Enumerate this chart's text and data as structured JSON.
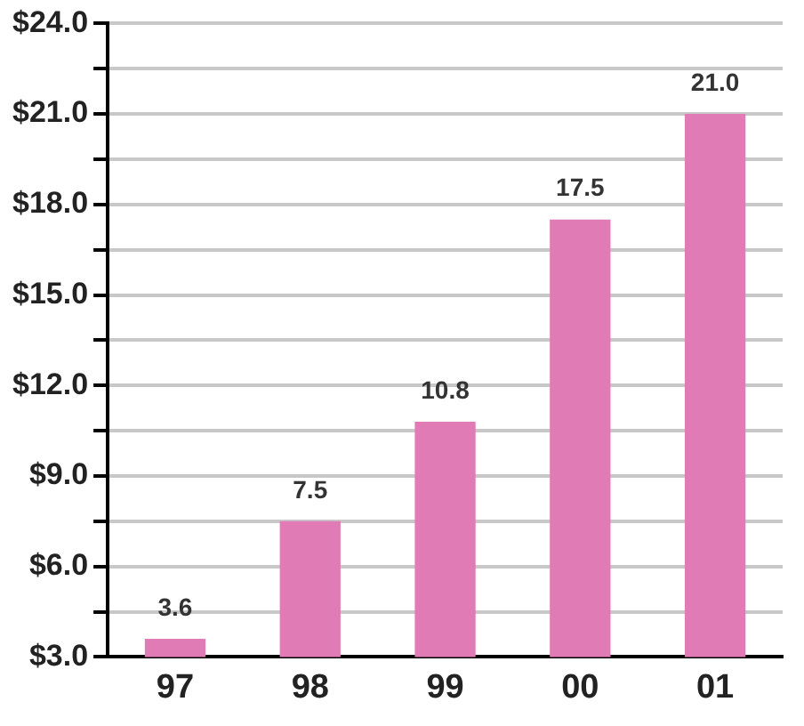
{
  "chart_data": {
    "type": "bar",
    "categories": [
      "97",
      "98",
      "99",
      "00",
      "01"
    ],
    "values": [
      3.6,
      7.5,
      10.8,
      17.5,
      21.0
    ],
    "value_labels": [
      "3.6",
      "7.5",
      "10.8",
      "17.5",
      "21.0"
    ],
    "color": "#e07bb5",
    "ylim": [
      3,
      24
    ],
    "yticks": [
      {
        "value": 3,
        "label": "$3.0"
      },
      {
        "value": 4.5,
        "label": null
      },
      {
        "value": 6,
        "label": "$6.0"
      },
      {
        "value": 7.5,
        "label": null
      },
      {
        "value": 9,
        "label": "$9.0"
      },
      {
        "value": 10.5,
        "label": null
      },
      {
        "value": 12,
        "label": "$12.0"
      },
      {
        "value": 13.5,
        "label": null
      },
      {
        "value": 15,
        "label": "$15.0"
      },
      {
        "value": 16.5,
        "label": null
      },
      {
        "value": 18,
        "label": "$18.0"
      },
      {
        "value": 19.5,
        "label": null
      },
      {
        "value": 21,
        "label": "$21.0"
      },
      {
        "value": 22.5,
        "label": null
      },
      {
        "value": 24,
        "label": "$24.0"
      }
    ],
    "grid": "y",
    "legend": false
  }
}
